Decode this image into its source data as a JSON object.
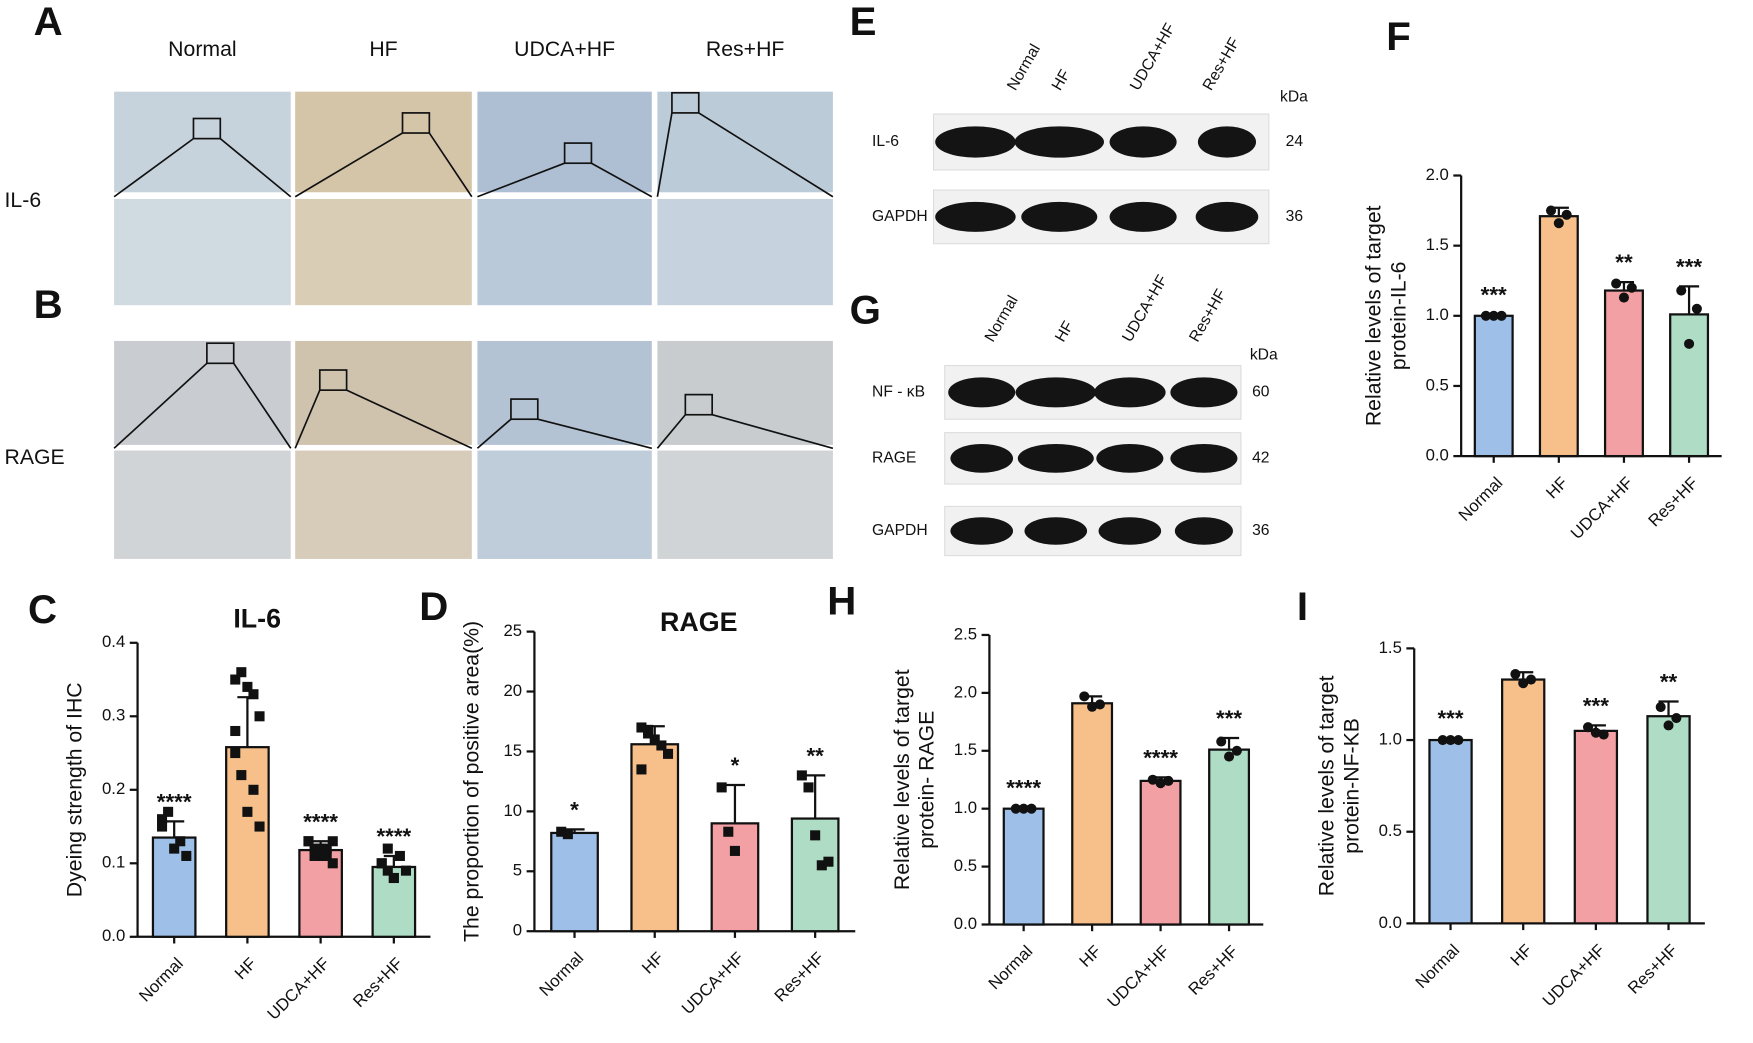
{
  "panel_labels": [
    "A",
    "B",
    "C",
    "D",
    "E",
    "F",
    "G",
    "H",
    "I"
  ],
  "ihc": {
    "columns": [
      "Normal",
      "HF",
      "UDCA+HF",
      "Res+HF"
    ],
    "rows": [
      "IL-6",
      "RAGE"
    ]
  },
  "blot_e": {
    "lanes": [
      "Normal",
      "HF",
      "UDCA+HF",
      "Res+HF"
    ],
    "unit": "kDa",
    "rows": [
      {
        "label": "IL-6",
        "kda": 24
      },
      {
        "label": "GAPDH",
        "kda": 36
      }
    ]
  },
  "blot_g": {
    "lanes": [
      "Normal",
      "HF",
      "UDCA+HF",
      "Res+HF"
    ],
    "unit": "kDa",
    "rows": [
      {
        "label": "NF - κB",
        "kda": 60
      },
      {
        "label": "RAGE",
        "kda": 42
      },
      {
        "label": "GAPDH",
        "kda": 36
      }
    ]
  },
  "chart_data": [
    {
      "type": "bar",
      "title": "IL-6",
      "ylabel": "Dyeing strength of IHC",
      "marker": "square",
      "categories": [
        "Normal",
        "HF",
        "UDCA+HF",
        "Res+HF"
      ],
      "colors": [
        "#9ec0e8",
        "#f7c08a",
        "#f2a0a3",
        "#aedcc4"
      ],
      "values": [
        0.135,
        0.258,
        0.118,
        0.095
      ],
      "errors": [
        0.022,
        0.068,
        0.012,
        0.015
      ],
      "significance": [
        "****",
        null,
        "****",
        "****"
      ],
      "points": [
        [
          0.16,
          0.17,
          0.12,
          0.13,
          0.11,
          0.15
        ],
        [
          0.35,
          0.36,
          0.34,
          0.33,
          0.3,
          0.25,
          0.22,
          0.17,
          0.2,
          0.15,
          0.28
        ],
        [
          0.13,
          0.12,
          0.11,
          0.12,
          0.1,
          0.13,
          0.11,
          0.12,
          0.11,
          0.13
        ],
        [
          0.1,
          0.09,
          0.08,
          0.11,
          0.09,
          0.1,
          0.12,
          0.08
        ]
      ],
      "ylim": [
        0,
        0.4
      ],
      "yticks": [
        {
          "value": 0,
          "label": "0.0"
        },
        0.1,
        0.2,
        0.3,
        0.4
      ]
    },
    {
      "type": "bar",
      "title": "RAGE",
      "ylabel": "The proportion of positive area(%)",
      "marker": "square",
      "categories": [
        "Normal",
        "HF",
        "UDCA+HF",
        "Res+HF"
      ],
      "colors": [
        "#9ec0e8",
        "#f7c08a",
        "#f2a0a3",
        "#aedcc4"
      ],
      "values": [
        8.2,
        15.6,
        9.0,
        9.4
      ],
      "errors": [
        0.3,
        1.5,
        3.2,
        3.6
      ],
      "significance": [
        "*",
        null,
        "*",
        "**"
      ],
      "points": [
        [
          8.3,
          8.1
        ],
        [
          17,
          16.5,
          16,
          15.5,
          14.8,
          13.5,
          16.8
        ],
        [
          12,
          8.3,
          6.7
        ],
        [
          13,
          12,
          8,
          5.5,
          5.8
        ]
      ],
      "ylim": [
        0,
        25
      ],
      "yticks": [
        0,
        5,
        10,
        15,
        20,
        25
      ]
    },
    {
      "type": "bar",
      "ylabel": [
        "Relative levels of target",
        "protein-IL-6"
      ],
      "marker": "circle",
      "categories": [
        "Normal",
        "HF",
        "UDCA+HF",
        "Res+HF"
      ],
      "colors": [
        "#9ec0e8",
        "#f7c08a",
        "#f2a0a3",
        "#aedcc4"
      ],
      "values": [
        1.0,
        1.71,
        1.18,
        1.01
      ],
      "errors": [
        0.01,
        0.06,
        0.06,
        0.2
      ],
      "significance": [
        "***",
        null,
        "**",
        "***"
      ],
      "points": [
        [
          1,
          1,
          1
        ],
        [
          1.75,
          1.66,
          1.72
        ],
        [
          1.23,
          1.13,
          1.2
        ],
        [
          1.18,
          0.8,
          1.05
        ]
      ],
      "ylim": [
        0,
        2
      ],
      "yticks": [
        {
          "value": 0,
          "label": "0.0"
        },
        0.5,
        {
          "value": 1,
          "label": "1.0"
        },
        1.5,
        {
          "value": 2,
          "label": "2.0"
        }
      ]
    },
    {
      "type": "bar",
      "ylabel": [
        "Relative levels of target",
        "protein- RAGE"
      ],
      "marker": "circle",
      "categories": [
        "Normal",
        "HF",
        "UDCA+HF",
        "Res+HF"
      ],
      "colors": [
        "#9ec0e8",
        "#f7c08a",
        "#f2a0a3",
        "#aedcc4"
      ],
      "values": [
        1.0,
        1.91,
        1.24,
        1.51
      ],
      "errors": [
        0.01,
        0.06,
        0.03,
        0.1
      ],
      "significance": [
        "****",
        null,
        "****",
        "***"
      ],
      "points": [
        [
          1,
          1,
          1
        ],
        [
          1.97,
          1.88,
          1.9
        ],
        [
          1.25,
          1.22,
          1.24
        ],
        [
          1.58,
          1.45,
          1.5
        ]
      ],
      "ylim": [
        0,
        2.5
      ],
      "yticks": [
        {
          "value": 0,
          "label": "0.0"
        },
        0.5,
        {
          "value": 1,
          "label": "1.0"
        },
        1.5,
        {
          "value": 2,
          "label": "2.0"
        },
        2.5
      ]
    },
    {
      "type": "bar",
      "ylabel": [
        "Relative levels of target",
        "protein-NF-KB"
      ],
      "marker": "circle",
      "categories": [
        "Normal",
        "HF",
        "UDCA+HF",
        "Res+HF"
      ],
      "colors": [
        "#9ec0e8",
        "#f7c08a",
        "#f2a0a3",
        "#aedcc4"
      ],
      "values": [
        1.0,
        1.33,
        1.05,
        1.13
      ],
      "errors": [
        0.01,
        0.04,
        0.03,
        0.08
      ],
      "significance": [
        "***",
        null,
        "***",
        "**"
      ],
      "points": [
        [
          1,
          1,
          1
        ],
        [
          1.36,
          1.31,
          1.33
        ],
        [
          1.07,
          1.04,
          1.03
        ],
        [
          1.18,
          1.08,
          1.12
        ]
      ],
      "ylim": [
        0,
        1.5
      ],
      "yticks": [
        {
          "value": 0,
          "label": "0.0"
        },
        0.5,
        {
          "value": 1,
          "label": "1.0"
        },
        1.5
      ]
    }
  ]
}
